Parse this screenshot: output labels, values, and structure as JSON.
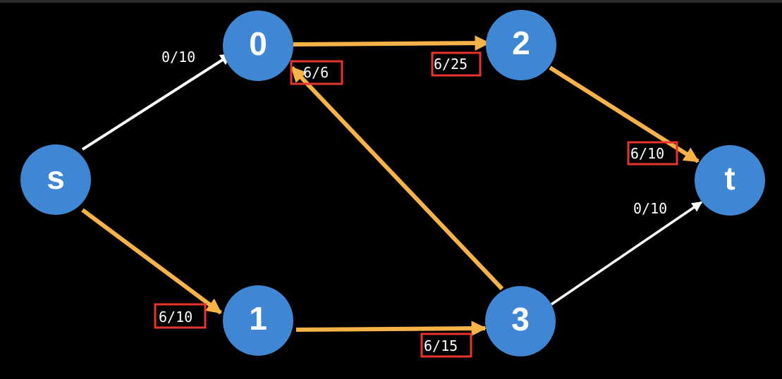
{
  "diagram": {
    "type": "flow-network",
    "colors": {
      "background": "#000000",
      "node": "#3f86d4",
      "flow_edge": "#f7b347",
      "empty_edge": "#ffffff",
      "highlight_box": "#e8352b",
      "text": "#ffffff"
    },
    "nodes": [
      {
        "id": "s",
        "label": "s"
      },
      {
        "id": "0",
        "label": "0"
      },
      {
        "id": "1",
        "label": "1"
      },
      {
        "id": "2",
        "label": "2"
      },
      {
        "id": "3",
        "label": "3"
      },
      {
        "id": "t",
        "label": "t"
      }
    ],
    "edges": [
      {
        "id": "s-0",
        "from": "s",
        "to": "0",
        "label": "0/10",
        "flow": 0,
        "capacity": 10,
        "highlighted": false
      },
      {
        "id": "s-1",
        "from": "s",
        "to": "1",
        "label": "6/10",
        "flow": 6,
        "capacity": 10,
        "highlighted": true
      },
      {
        "id": "0-2",
        "from": "0",
        "to": "2",
        "label": "6/25",
        "flow": 6,
        "capacity": 25,
        "highlighted": true
      },
      {
        "id": "3-0",
        "from": "3",
        "to": "0",
        "label": "6/6",
        "flow": 6,
        "capacity": 6,
        "highlighted": true
      },
      {
        "id": "1-3",
        "from": "1",
        "to": "3",
        "label": "6/15",
        "flow": 6,
        "capacity": 15,
        "highlighted": true
      },
      {
        "id": "2-t",
        "from": "2",
        "to": "t",
        "label": "6/10",
        "flow": 6,
        "capacity": 10,
        "highlighted": true
      },
      {
        "id": "3-t",
        "from": "3",
        "to": "t",
        "label": "0/10",
        "flow": 0,
        "capacity": 10,
        "highlighted": false
      }
    ]
  }
}
